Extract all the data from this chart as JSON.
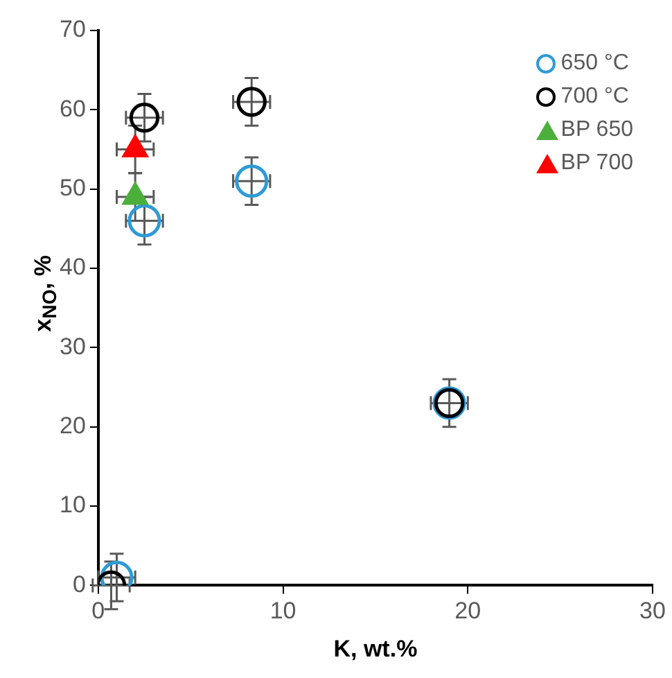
{
  "chart_data": {
    "type": "scatter",
    "xlabel": "K, wt.%",
    "ylabel": "x$_{NO}$, %",
    "xlim": [
      0,
      30
    ],
    "xticks": [
      0,
      10,
      20,
      30
    ],
    "ylim": [
      0,
      70
    ],
    "yticks": [
      0,
      10,
      20,
      30,
      40,
      50,
      60,
      70
    ],
    "grid": false,
    "legend": "top right",
    "series": [
      {
        "name": "650 °C",
        "color": "#2e9bd6",
        "marker": "circle",
        "x": [
          1.0,
          2.5,
          8.3,
          19.0
        ],
        "values": [
          1,
          46,
          51,
          23
        ],
        "errors": [
          3,
          3,
          3,
          3
        ],
        "xerrors": [
          1,
          1,
          1,
          1
        ]
      },
      {
        "name": "700 °C",
        "color": "#000000",
        "marker": "circle",
        "x": [
          0.7,
          2.5,
          8.3,
          19.0
        ],
        "values": [
          0,
          59,
          61,
          23
        ],
        "errors": [
          3,
          3,
          3,
          3
        ],
        "xerrors": [
          1,
          1,
          1,
          1
        ]
      },
      {
        "name": "BP 650",
        "color": "#4caf3c",
        "marker": "triangle",
        "x": [
          2.0
        ],
        "values": [
          49
        ],
        "errors": [
          3
        ],
        "xerrors": [
          1
        ]
      },
      {
        "name": "BP 700",
        "color": "#ff0000",
        "marker": "triangle",
        "x": [
          2.0
        ],
        "values": [
          55
        ],
        "errors": [
          3
        ],
        "xerrors": [
          1
        ]
      }
    ]
  }
}
